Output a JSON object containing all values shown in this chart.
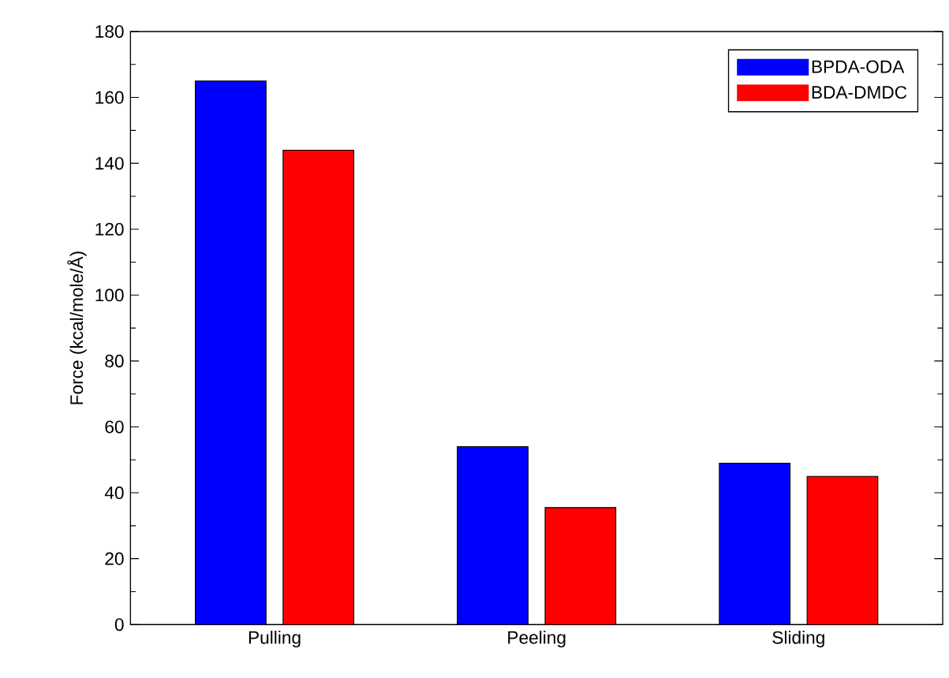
{
  "chart_data": {
    "type": "bar",
    "ylabel": "Force (kcal/mole/Å)",
    "categories": [
      "Pulling",
      "Peeling",
      "Sliding"
    ],
    "series": [
      {
        "name": "BPDA-ODA",
        "color": "#0000ff",
        "values": [
          165,
          54,
          49
        ]
      },
      {
        "name": "BDA-DMDC",
        "color": "#ff0000",
        "values": [
          144,
          35.5,
          45
        ]
      }
    ],
    "ylim": [
      0,
      180
    ],
    "yticks": [
      0,
      20,
      40,
      60,
      80,
      100,
      120,
      140,
      160,
      180
    ],
    "legend": "top right"
  }
}
